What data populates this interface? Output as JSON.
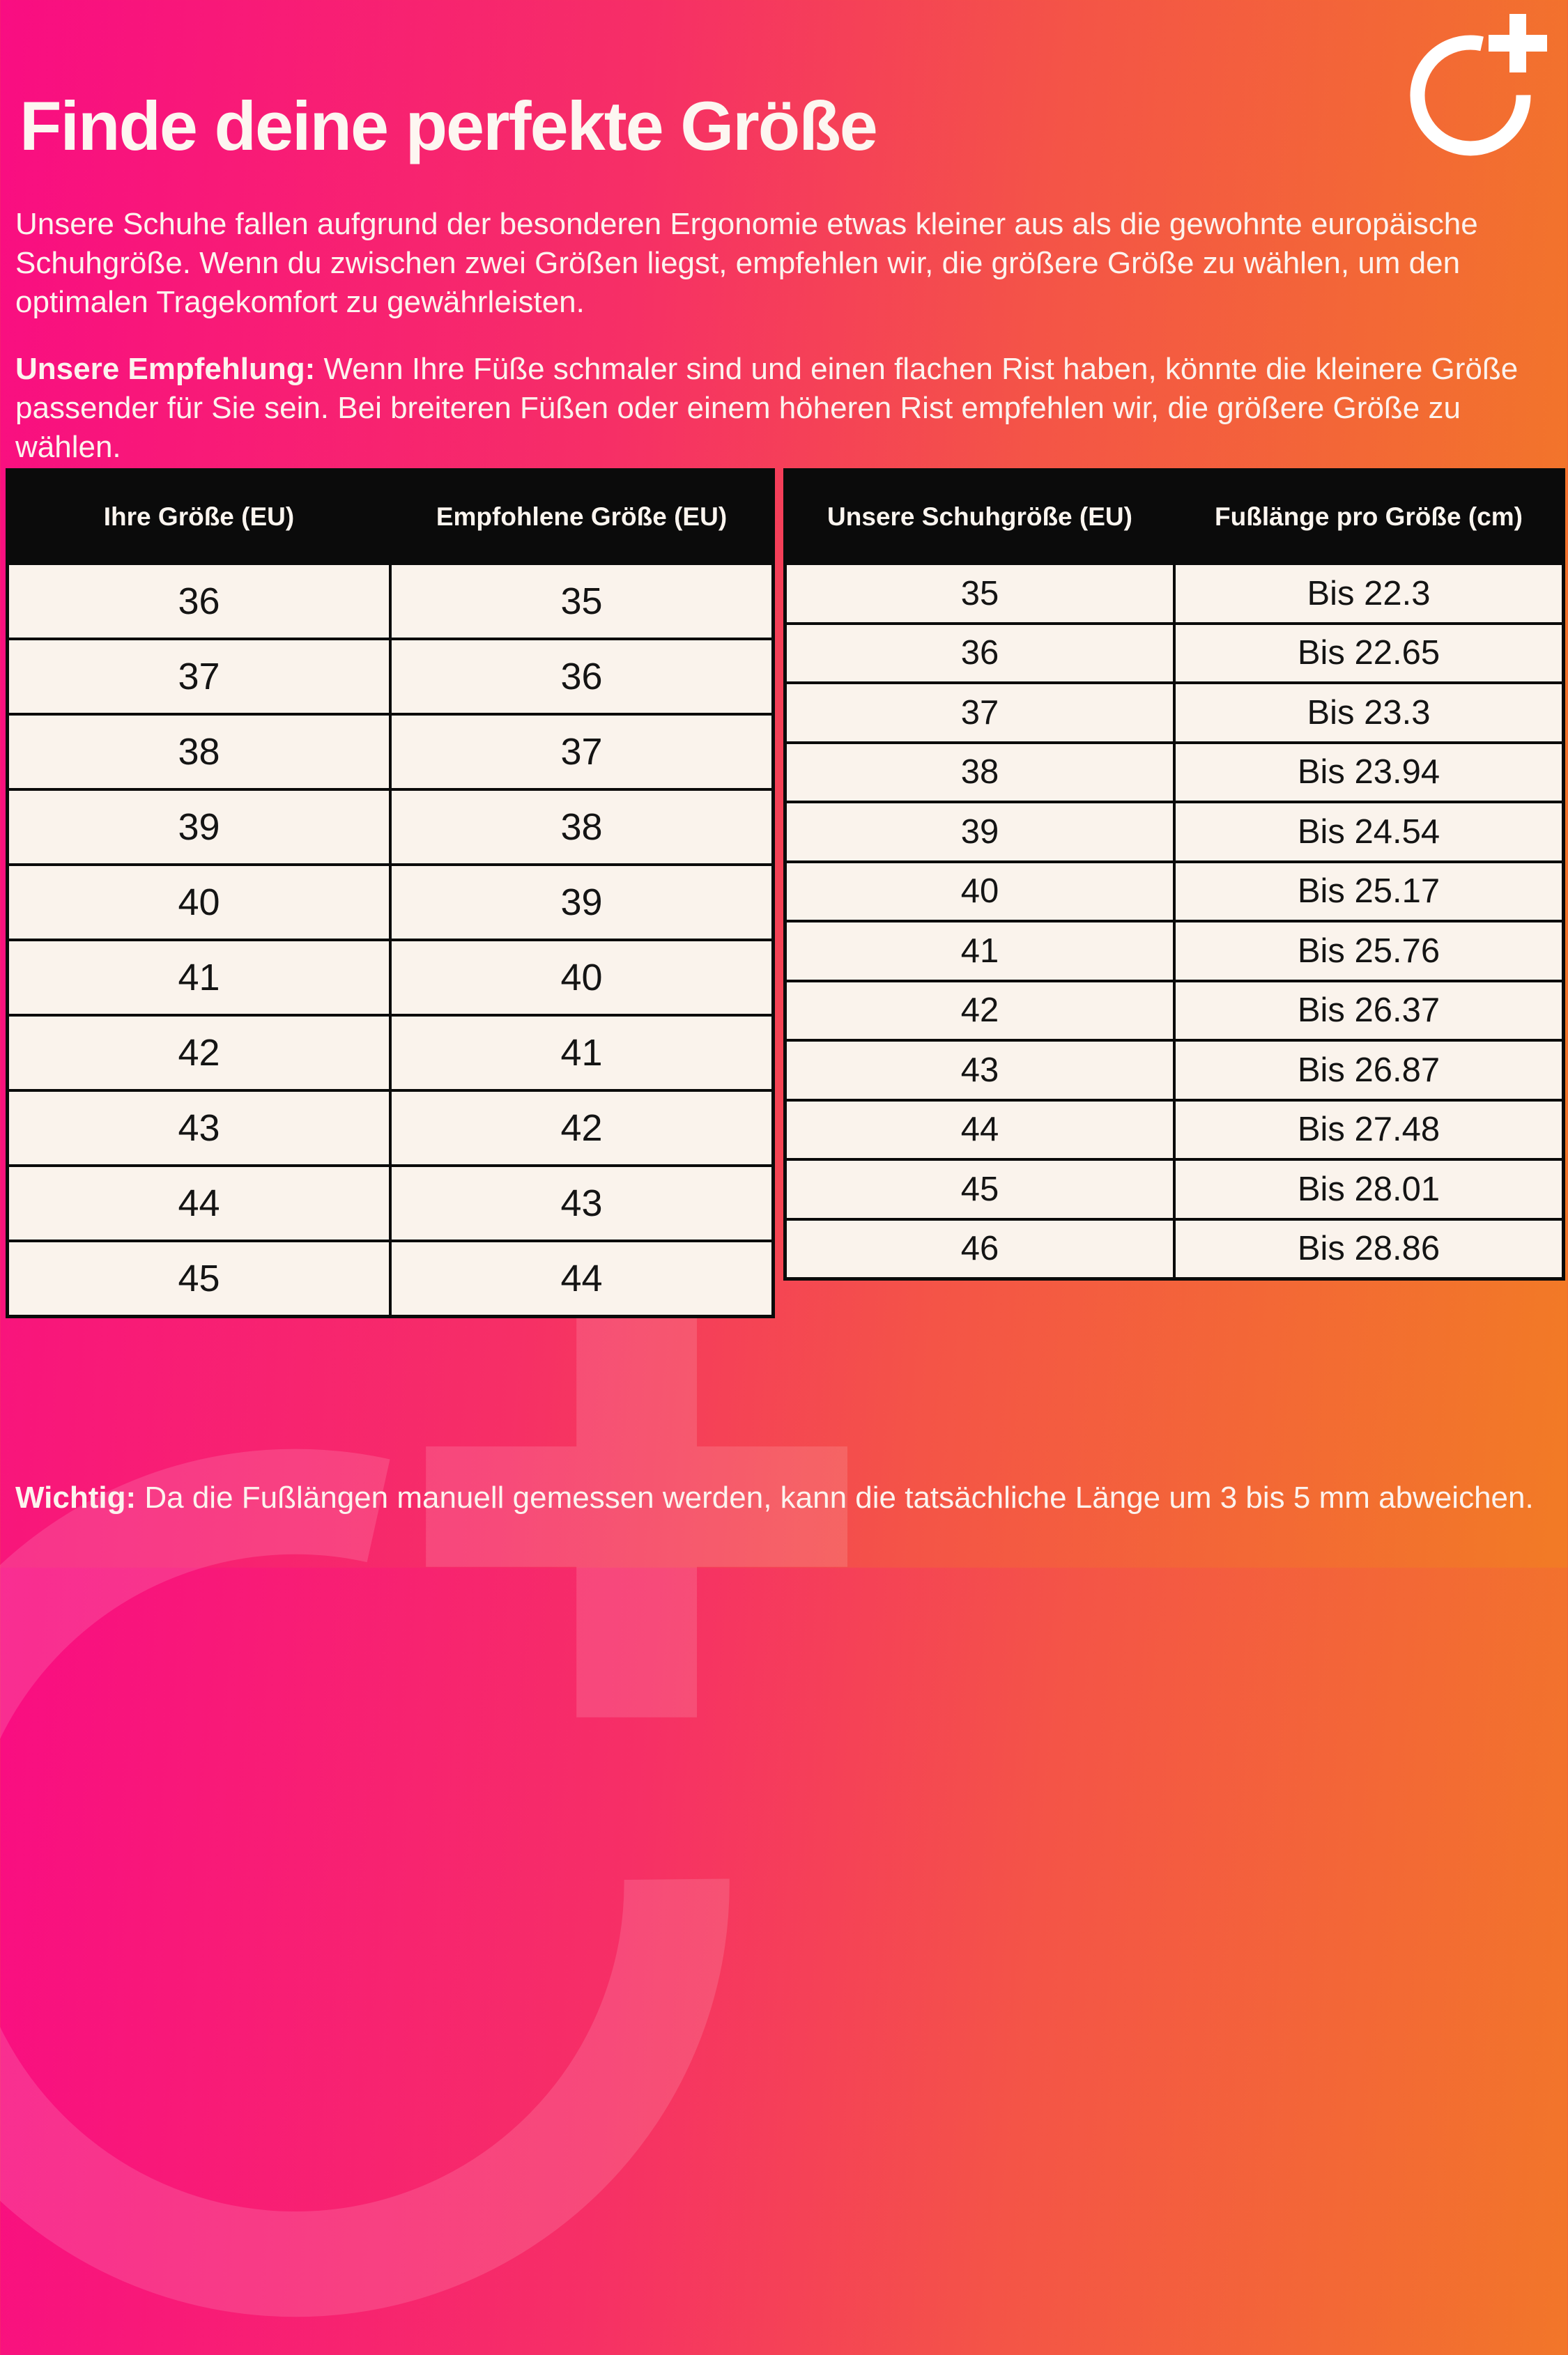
{
  "header": {
    "title": "Finde deine perfekte Größe",
    "logo_name": "o-plus-brand-logo"
  },
  "intro": {
    "text": "Unsere Schuhe fallen aufgrund der besonderen Ergonomie etwas kleiner aus als die gewohnte europäische Schuhgröße. Wenn du zwischen zwei Größen liegst, empfehlen wir, die größere Größe zu wählen, um den optimalen Tragekomfort zu gewährleisten."
  },
  "recommendation": {
    "label": "Unsere Empfehlung:",
    "text": " Wenn Ihre Füße schmaler sind und einen flachen Rist haben, könnte die kleinere Größe passender für Sie sein. Bei breiteren Füßen oder einem höheren Rist empfehlen wir, die größere Größe zu wählen."
  },
  "tables": {
    "conversion": {
      "headers": [
        "Ihre Größe (EU)",
        "Empfohlene Größe (EU)"
      ],
      "rows": [
        [
          "36",
          "35"
        ],
        [
          "37",
          "36"
        ],
        [
          "38",
          "37"
        ],
        [
          "39",
          "38"
        ],
        [
          "40",
          "39"
        ],
        [
          "41",
          "40"
        ],
        [
          "42",
          "41"
        ],
        [
          "43",
          "42"
        ],
        [
          "44",
          "43"
        ],
        [
          "45",
          "44"
        ]
      ]
    },
    "foot_length": {
      "headers": [
        "Unsere Schuhgröße (EU)",
        "Fußlänge pro Größe (cm)"
      ],
      "rows": [
        [
          "35",
          "Bis 22.3"
        ],
        [
          "36",
          "Bis 22.65"
        ],
        [
          "37",
          "Bis 23.3"
        ],
        [
          "38",
          "Bis 23.94"
        ],
        [
          "39",
          "Bis 24.54"
        ],
        [
          "40",
          "Bis 25.17"
        ],
        [
          "41",
          "Bis 25.76"
        ],
        [
          "42",
          "Bis 26.37"
        ],
        [
          "43",
          "Bis 26.87"
        ],
        [
          "44",
          "Bis 27.48"
        ],
        [
          "45",
          "Bis 28.01"
        ],
        [
          "46",
          "Bis 28.86"
        ]
      ]
    }
  },
  "note": {
    "label": "Wichtig:",
    "text": " Da die Fußlängen manuell gemessen werden, kann die tatsächliche Länge um 3 bis 5 mm abweichen."
  },
  "colors": {
    "gradient_start": "#f90d82",
    "gradient_end": "#f27b25",
    "table_header_bg": "#0b0b0b",
    "table_cell_bg": "#faf3ec",
    "table_border": "#0b0b0b",
    "text_light": "#fcf3ee",
    "text_dark": "#141414"
  }
}
